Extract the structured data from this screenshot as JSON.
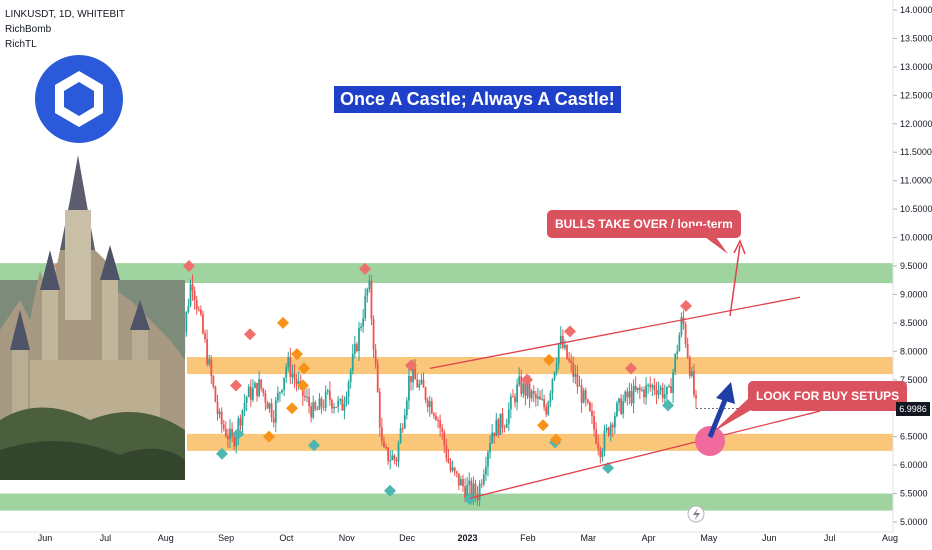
{
  "header": {
    "symbol_line": "LINKUSDT, 1D, WHITEBIT",
    "indicators": [
      "RichBomb",
      "RichTL"
    ]
  },
  "title": "Once A Castle; Always A Castle!",
  "callouts": {
    "bulls": "BULLS TAKE OVER / long-term",
    "buy": "LOOK FOR BUY SETUPS"
  },
  "last_price": "6.9986",
  "colors": {
    "green_zone": "#9fd4a0",
    "orange_zone": "#f9c67a",
    "up_candle": "#26a69a",
    "down_candle": "#ef5350",
    "sell_marker": "#ef6f6c",
    "buy_marker": "#4fb7b1",
    "orange_marker": "#f7931a",
    "trendline": "#e0414b",
    "arrow": "#1f3fa6",
    "logo_blue": "#2a5ada",
    "callout": "#d9525e"
  },
  "icons": [
    "chainlink-logo-icon",
    "castle-illustration",
    "lightning-icon"
  ],
  "chart_data": {
    "type": "candlestick",
    "symbol": "LINKUSDT",
    "timeframe": "1D",
    "exchange": "WHITEBIT",
    "y_axis": {
      "range": [
        5.0,
        14.0
      ],
      "ticks": [
        "5.0000",
        "5.5000",
        "6.0000",
        "6.5000",
        "7.0000",
        "7.5000",
        "8.0000",
        "8.5000",
        "9.0000",
        "9.5000",
        "10.0000",
        "10.5000",
        "11.0000",
        "11.5000",
        "12.0000",
        "12.5000",
        "13.0000",
        "13.5000",
        "14.0000"
      ]
    },
    "x_axis": {
      "ticks": [
        "Jun",
        "Jul",
        "Aug",
        "Sep",
        "Oct",
        "Nov",
        "Dec",
        "2023",
        "Feb",
        "Mar",
        "Apr",
        "May",
        "Jun",
        "Jul",
        "Aug"
      ]
    },
    "zones": [
      {
        "color": "green",
        "low": 9.2,
        "high": 9.55
      },
      {
        "color": "orange",
        "low": 7.6,
        "high": 7.9
      },
      {
        "color": "orange",
        "low": 6.25,
        "high": 6.55
      },
      {
        "color": "green",
        "low": 5.2,
        "high": 5.5
      }
    ],
    "trendlines": [
      {
        "from": [
          "Nov 23",
          7.7
        ],
        "to": [
          "Jun 23",
          8.9
        ]
      },
      {
        "from": [
          "Jan 1",
          5.45
        ],
        "to": [
          "Jun 23",
          6.95
        ]
      }
    ],
    "close_series": {
      "dates": [
        "Aug 1",
        "Aug 8",
        "Aug 15",
        "Aug 22",
        "Aug 29",
        "Sep 5",
        "Sep 12",
        "Sep 19",
        "Sep 26",
        "Oct 3",
        "Oct 10",
        "Oct 17",
        "Oct 24",
        "Oct 31",
        "Nov 7",
        "Nov 14",
        "Nov 21",
        "Nov 28",
        "Dec 5",
        "Dec 12",
        "Dec 19",
        "Dec 26",
        "Jan 2",
        "Jan 9",
        "Jan 16",
        "Jan 23",
        "Jan 30",
        "Feb 6",
        "Feb 13",
        "Feb 20",
        "Feb 27",
        "Mar 6",
        "Mar 13",
        "Mar 20",
        "Mar 27",
        "Apr 3",
        "Apr 10",
        "Apr 17",
        "Apr 24"
      ],
      "values": [
        7.6,
        9.3,
        8.1,
        6.8,
        6.4,
        7.2,
        7.4,
        6.9,
        7.8,
        7.3,
        6.9,
        7.2,
        7.0,
        8.0,
        9.2,
        6.2,
        6.1,
        7.6,
        7.3,
        6.9,
        5.9,
        5.6,
        5.5,
        6.6,
        6.8,
        7.4,
        7.2,
        7.0,
        8.2,
        7.6,
        7.0,
        6.3,
        6.9,
        7.2,
        7.3,
        7.4,
        7.2,
        8.6,
        7.0
      ]
    },
    "last_value": 6.9986,
    "annotations": [
      "Once A Castle; Always A Castle!",
      "BULLS TAKE OVER / long-term",
      "LOOK FOR BUY SETUPS"
    ]
  }
}
